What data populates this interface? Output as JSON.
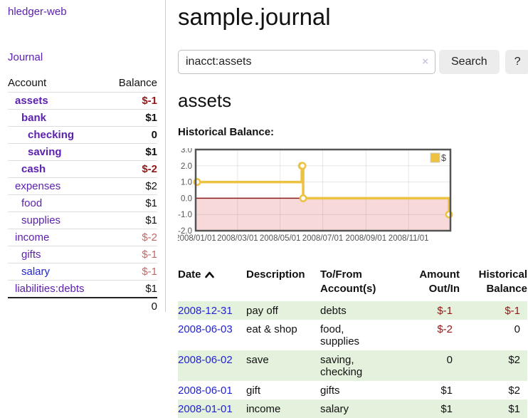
{
  "app_title": "hledger-web",
  "nav": {
    "journal_label": "Journal"
  },
  "sidebar_table": {
    "account_header": "Account",
    "balance_header": "Balance",
    "rows": [
      {
        "account": "assets",
        "balance": "$-1",
        "depth": 1,
        "bold": true,
        "link_color": "purple",
        "balance_color": "negative-strong"
      },
      {
        "account": "bank",
        "balance": "$1",
        "depth": 2,
        "bold": true,
        "link_color": "purple",
        "balance_color": "normal"
      },
      {
        "account": "checking",
        "balance": "0",
        "depth": 3,
        "bold": true,
        "link_color": "purple",
        "balance_color": "normal"
      },
      {
        "account": "saving",
        "balance": "$1",
        "depth": 3,
        "bold": true,
        "link_color": "purple",
        "balance_color": "normal"
      },
      {
        "account": "cash",
        "balance": "$-2",
        "depth": 2,
        "bold": true,
        "link_color": "purple",
        "balance_color": "negative-strong"
      },
      {
        "account": "expenses",
        "balance": "$2",
        "depth": 1,
        "bold": false,
        "link_color": "purple",
        "balance_color": "normal"
      },
      {
        "account": "food",
        "balance": "$1",
        "depth": 2,
        "bold": false,
        "link_color": "purple",
        "balance_color": "normal"
      },
      {
        "account": "supplies",
        "balance": "$1",
        "depth": 2,
        "bold": false,
        "link_color": "purple",
        "balance_color": "normal"
      },
      {
        "account": "income",
        "balance": "$-2",
        "depth": 1,
        "bold": false,
        "link_color": "purple",
        "balance_color": "negative-soft"
      },
      {
        "account": "gifts",
        "balance": "$-1",
        "depth": 2,
        "bold": false,
        "link_color": "purple",
        "balance_color": "negative-soft"
      },
      {
        "account": "salary",
        "balance": "$-1",
        "depth": 2,
        "bold": false,
        "link_color": "blue",
        "balance_color": "negative-soft"
      },
      {
        "account": "liabilities:debts",
        "balance": "$1",
        "depth": 1,
        "bold": false,
        "link_color": "purple",
        "balance_color": "normal"
      }
    ],
    "total": "0"
  },
  "main": {
    "title": "sample.journal",
    "search": {
      "value": "inacct:assets",
      "clear_label": "×",
      "search_button": "Search",
      "help_button": "?"
    },
    "account_heading": "assets",
    "chart_title": "Historical Balance:"
  },
  "register": {
    "headers": {
      "date": "Date",
      "description": "Description",
      "accounts": "To/From Account(s)",
      "amount": "Amount Out/In",
      "balance": "Historical Balance"
    },
    "rows": [
      {
        "date": "2008-12-31",
        "description": "pay off",
        "accounts": "debts",
        "amount": "$-1",
        "amount_negative": true,
        "balance": "$-1",
        "balance_negative": true,
        "shaded": true
      },
      {
        "date": "2008-06-03",
        "description": "eat & shop",
        "accounts": "food, supplies",
        "amount": "$-2",
        "amount_negative": true,
        "balance": "0",
        "balance_negative": false,
        "shaded": false
      },
      {
        "date": "2008-06-02",
        "description": "save",
        "accounts": "saving, checking",
        "amount": "0",
        "amount_negative": false,
        "balance": "$2",
        "balance_negative": false,
        "shaded": true
      },
      {
        "date": "2008-06-01",
        "description": "gift",
        "accounts": "gifts",
        "amount": "$1",
        "amount_negative": false,
        "balance": "$2",
        "balance_negative": false,
        "shaded": false
      },
      {
        "date": "2008-01-01",
        "description": "income",
        "accounts": "salary",
        "amount": "$1",
        "amount_negative": false,
        "balance": "$1",
        "balance_negative": false,
        "shaded": true
      }
    ]
  },
  "chart_data": {
    "type": "line",
    "title": "Historical Balance",
    "series": [
      {
        "name": "$",
        "color": "#EDC240",
        "step": true,
        "points": [
          {
            "x": "2008-01-01",
            "y": 1
          },
          {
            "x": "2008-06-01",
            "y": 2
          },
          {
            "x": "2008-06-02",
            "y": 2
          },
          {
            "x": "2008-06-03",
            "y": 0
          },
          {
            "x": "2008-12-31",
            "y": -1
          }
        ]
      }
    ],
    "xlim": [
      "2008-01-01",
      "2008-12-31"
    ],
    "ylim": [
      -2,
      3
    ],
    "yticks": [
      "3.0",
      "2.0",
      "1.0",
      "0.0",
      "-1.0",
      "-2.0"
    ],
    "xticks": [
      "2008/01/01",
      "2008/03/01",
      "2008/05/01",
      "2008/07/01",
      "2008/09/01",
      "2008/11/01"
    ],
    "legend_position": "top-right",
    "grid": true,
    "negative_region_color": "#f8d9d9",
    "zero_line_color": "#8b1a1a",
    "frame_color": "#545454",
    "tick_label_color": "#545454"
  },
  "colors": {
    "link_purple": "#5c21b0",
    "link_blue": "#2222dd",
    "date_blue": "#2323d3",
    "negative_strong": "#941616",
    "negative_soft": "#c06868",
    "row_green": "#e4f1dd",
    "series_yellow": "#EDC240",
    "button_gray": "#ececec"
  }
}
